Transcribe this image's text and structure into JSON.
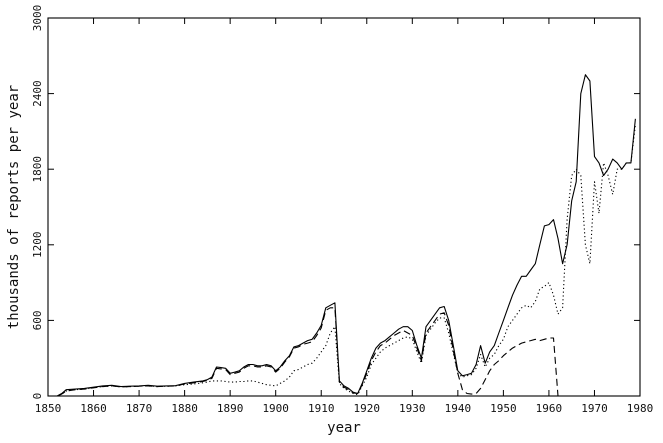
{
  "chart_data": {
    "type": "line",
    "title": "",
    "xlabel": "year",
    "ylabel": "thousands of reports per year",
    "xlim": [
      1850,
      1980
    ],
    "ylim": [
      0,
      3000
    ],
    "x_ticks": [
      1850,
      1860,
      1870,
      1880,
      1890,
      1900,
      1910,
      1920,
      1930,
      1940,
      1950,
      1960,
      1970,
      1980
    ],
    "y_ticks": [
      0,
      600,
      1200,
      1800,
      2400,
      3000
    ],
    "grid": false,
    "legend": "none",
    "series": [
      {
        "style": "solid",
        "x": [
          1850,
          1852,
          1853,
          1854,
          1856,
          1858,
          1860,
          1862,
          1864,
          1866,
          1868,
          1870,
          1872,
          1874,
          1876,
          1878,
          1880,
          1882,
          1884,
          1885,
          1886,
          1887,
          1888,
          1889,
          1890,
          1891,
          1892,
          1893,
          1894,
          1895,
          1896,
          1897,
          1898,
          1899,
          1900,
          1901,
          1902,
          1903,
          1904,
          1905,
          1906,
          1907,
          1908,
          1909,
          1910,
          1911,
          1912,
          1913,
          1914,
          1915,
          1916,
          1917,
          1918,
          1919,
          1920,
          1921,
          1922,
          1923,
          1924,
          1925,
          1926,
          1927,
          1928,
          1929,
          1930,
          1931,
          1932,
          1933,
          1934,
          1935,
          1936,
          1937,
          1938,
          1939,
          1940,
          1941,
          1942,
          1943,
          1944,
          1945,
          1946,
          1947,
          1948,
          1949,
          1950,
          1951,
          1952,
          1953,
          1954,
          1955,
          1956,
          1957,
          1958,
          1959,
          1960,
          1961,
          1962,
          1963,
          1964,
          1965,
          1966,
          1967,
          1968,
          1969,
          1970,
          1971,
          1972,
          1973,
          1974,
          1975,
          1976,
          1977,
          1978,
          1979
        ],
        "y": [
          0,
          0,
          20,
          50,
          55,
          60,
          70,
          80,
          85,
          75,
          78,
          80,
          85,
          78,
          80,
          82,
          100,
          110,
          120,
          130,
          150,
          230,
          225,
          220,
          180,
          190,
          200,
          230,
          250,
          250,
          240,
          240,
          250,
          240,
          200,
          230,
          280,
          320,
          390,
          400,
          420,
          440,
          450,
          500,
          560,
          700,
          720,
          740,
          120,
          80,
          60,
          30,
          20,
          100,
          200,
          300,
          380,
          420,
          440,
          470,
          500,
          530,
          550,
          550,
          520,
          400,
          300,
          550,
          600,
          650,
          700,
          710,
          600,
          400,
          200,
          160,
          170,
          180,
          250,
          400,
          260,
          350,
          400,
          500,
          600,
          700,
          800,
          880,
          950,
          950,
          1000,
          1050,
          1200,
          1350,
          1360,
          1400,
          1250,
          1050,
          1200,
          1550,
          1700,
          2400,
          2550,
          2500,
          1900,
          1850,
          1750,
          1800,
          1880,
          1850,
          1800,
          1850,
          1850,
          2200
        ]
      },
      {
        "style": "dashed",
        "x": [
          1850,
          1852,
          1853,
          1854,
          1856,
          1858,
          1860,
          1862,
          1864,
          1866,
          1868,
          1870,
          1872,
          1874,
          1876,
          1878,
          1880,
          1882,
          1884,
          1885,
          1886,
          1887,
          1888,
          1889,
          1890,
          1891,
          1892,
          1893,
          1894,
          1895,
          1896,
          1897,
          1898,
          1899,
          1900,
          1901,
          1902,
          1903,
          1904,
          1905,
          1906,
          1907,
          1908,
          1909,
          1910,
          1911,
          1912,
          1913,
          1914,
          1915,
          1916,
          1917,
          1918,
          1919,
          1920,
          1921,
          1922,
          1923,
          1924,
          1925,
          1926,
          1927,
          1928,
          1929,
          1930,
          1931,
          1932,
          1933,
          1934,
          1935,
          1936,
          1937,
          1938,
          1939,
          1940,
          1941,
          1942,
          1943,
          1944,
          1945,
          1946,
          1947,
          1948,
          1949,
          1950,
          1951,
          1952,
          1953,
          1954,
          1955,
          1956,
          1957,
          1958,
          1959,
          1960,
          1961,
          1962
        ],
        "y": [
          0,
          0,
          15,
          40,
          50,
          55,
          65,
          75,
          80,
          72,
          75,
          78,
          80,
          75,
          78,
          80,
          95,
          105,
          115,
          125,
          140,
          220,
          215,
          210,
          170,
          180,
          190,
          220,
          240,
          240,
          230,
          230,
          240,
          230,
          190,
          220,
          270,
          310,
          380,
          390,
          410,
          420,
          430,
          480,
          540,
          680,
          700,
          700,
          110,
          70,
          50,
          25,
          20,
          90,
          180,
          280,
          350,
          400,
          420,
          450,
          480,
          500,
          520,
          500,
          480,
          380,
          280,
          500,
          550,
          600,
          650,
          660,
          560,
          360,
          180,
          50,
          20,
          15,
          20,
          60,
          130,
          200,
          250,
          280,
          320,
          350,
          380,
          400,
          420,
          430,
          440,
          450,
          440,
          450,
          460,
          460,
          0
        ]
      },
      {
        "style": "dotted",
        "x": [
          1850,
          1852,
          1853,
          1854,
          1856,
          1858,
          1860,
          1862,
          1864,
          1866,
          1868,
          1870,
          1872,
          1874,
          1876,
          1878,
          1880,
          1882,
          1884,
          1885,
          1886,
          1887,
          1888,
          1889,
          1890,
          1891,
          1892,
          1893,
          1894,
          1895,
          1896,
          1897,
          1898,
          1899,
          1900,
          1901,
          1902,
          1903,
          1904,
          1905,
          1906,
          1907,
          1908,
          1909,
          1910,
          1911,
          1912,
          1913,
          1914,
          1915,
          1916,
          1917,
          1918,
          1919,
          1920,
          1921,
          1922,
          1923,
          1924,
          1925,
          1926,
          1927,
          1928,
          1929,
          1930,
          1931,
          1932,
          1933,
          1934,
          1935,
          1936,
          1937,
          1938,
          1939,
          1940,
          1941,
          1942,
          1943,
          1944,
          1945,
          1946,
          1947,
          1948,
          1949,
          1950,
          1951,
          1952,
          1953,
          1954,
          1955,
          1956,
          1957,
          1958,
          1959,
          1960,
          1961,
          1962,
          1963,
          1964,
          1965,
          1966,
          1967,
          1968,
          1969,
          1970,
          1971,
          1972,
          1973,
          1974,
          1975,
          1976,
          1977,
          1978,
          1979
        ],
        "y": [
          0,
          0,
          15,
          40,
          50,
          55,
          65,
          75,
          80,
          72,
          75,
          78,
          80,
          75,
          78,
          80,
          90,
          95,
          105,
          110,
          120,
          120,
          120,
          115,
          110,
          110,
          115,
          115,
          120,
          120,
          110,
          100,
          90,
          85,
          80,
          100,
          120,
          150,
          200,
          210,
          230,
          250,
          260,
          300,
          350,
          400,
          500,
          550,
          100,
          60,
          40,
          20,
          10,
          80,
          150,
          250,
          300,
          350,
          380,
          400,
          420,
          440,
          460,
          470,
          450,
          350,
          260,
          480,
          530,
          580,
          620,
          620,
          500,
          340,
          180,
          150,
          160,
          170,
          220,
          330,
          230,
          300,
          330,
          400,
          450,
          550,
          600,
          650,
          700,
          720,
          700,
          750,
          850,
          870,
          900,
          800,
          650,
          700,
          1400,
          1750,
          1800,
          1750,
          1200,
          1050,
          1700,
          1450,
          1850,
          1750,
          1600,
          1800,
          1800,
          1850,
          1850,
          2150
        ]
      }
    ]
  }
}
